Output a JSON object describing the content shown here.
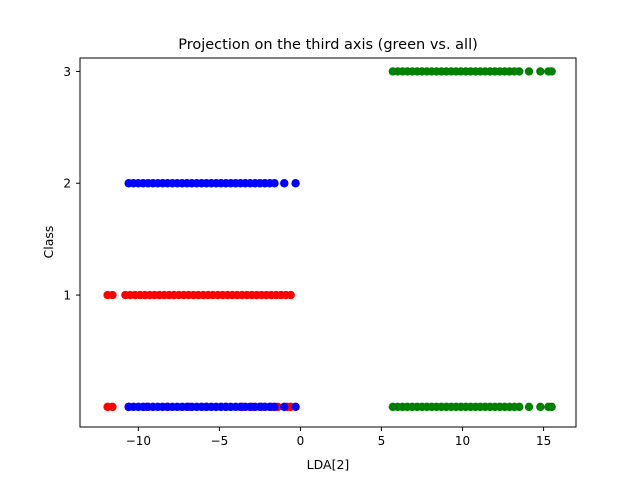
{
  "chart_data": {
    "type": "scatter",
    "title": "Projection on the third axis (green vs. all)",
    "xlabel": "LDA[2]",
    "ylabel": "Class",
    "xlim": [
      -13.6,
      17.0
    ],
    "ylim": [
      -0.18,
      3.12
    ],
    "xticks": [
      -10,
      -5,
      0,
      5,
      10,
      15
    ],
    "xtick_labels": [
      "−10",
      "−5",
      "0",
      "5",
      "10",
      "15"
    ],
    "yticks": [
      1,
      2,
      3
    ],
    "ytick_labels": [
      "1",
      "2",
      "3"
    ],
    "grid": false,
    "legend": "none",
    "series": [
      {
        "color": "#ff0000",
        "points": [
          [
            -11.9,
            1
          ],
          [
            -11.6,
            1
          ],
          [
            -10.8,
            1
          ],
          [
            -10.5,
            1
          ],
          [
            -10.2,
            1
          ],
          [
            -9.9,
            1
          ],
          [
            -9.6,
            1
          ],
          [
            -9.3,
            1
          ],
          [
            -9.0,
            1
          ],
          [
            -8.7,
            1
          ],
          [
            -8.4,
            1
          ],
          [
            -8.1,
            1
          ],
          [
            -7.8,
            1
          ],
          [
            -7.5,
            1
          ],
          [
            -7.2,
            1
          ],
          [
            -6.9,
            1
          ],
          [
            -6.6,
            1
          ],
          [
            -6.3,
            1
          ],
          [
            -6.0,
            1
          ],
          [
            -5.7,
            1
          ],
          [
            -5.4,
            1
          ],
          [
            -5.1,
            1
          ],
          [
            -4.8,
            1
          ],
          [
            -4.5,
            1
          ],
          [
            -4.2,
            1
          ],
          [
            -3.9,
            1
          ],
          [
            -3.6,
            1
          ],
          [
            -3.3,
            1
          ],
          [
            -3.0,
            1
          ],
          [
            -2.7,
            1
          ],
          [
            -2.4,
            1
          ],
          [
            -2.1,
            1
          ],
          [
            -1.8,
            1
          ],
          [
            -1.5,
            1
          ],
          [
            -1.2,
            1
          ],
          [
            -0.9,
            1
          ],
          [
            -0.6,
            1
          ],
          [
            -11.9,
            0
          ],
          [
            -11.6,
            0
          ],
          [
            -10.6,
            0
          ],
          [
            -9.5,
            0
          ],
          [
            -8.2,
            0
          ],
          [
            -6.9,
            0
          ],
          [
            -5.8,
            0
          ],
          [
            -4.6,
            0
          ],
          [
            -3.6,
            0
          ],
          [
            -3.0,
            0
          ],
          [
            -2.4,
            0
          ],
          [
            -1.8,
            0
          ],
          [
            -1.4,
            0
          ],
          [
            -0.8,
            0
          ],
          [
            -0.6,
            0
          ]
        ]
      },
      {
        "color": "#0000ff",
        "points": [
          [
            -10.6,
            2
          ],
          [
            -10.3,
            2
          ],
          [
            -10.0,
            2
          ],
          [
            -9.7,
            2
          ],
          [
            -9.4,
            2
          ],
          [
            -9.1,
            2
          ],
          [
            -8.8,
            2
          ],
          [
            -8.5,
            2
          ],
          [
            -8.2,
            2
          ],
          [
            -7.9,
            2
          ],
          [
            -7.6,
            2
          ],
          [
            -7.3,
            2
          ],
          [
            -7.0,
            2
          ],
          [
            -6.7,
            2
          ],
          [
            -6.4,
            2
          ],
          [
            -6.1,
            2
          ],
          [
            -5.8,
            2
          ],
          [
            -5.5,
            2
          ],
          [
            -5.2,
            2
          ],
          [
            -4.9,
            2
          ],
          [
            -4.6,
            2
          ],
          [
            -4.3,
            2
          ],
          [
            -4.0,
            2
          ],
          [
            -3.7,
            2
          ],
          [
            -3.4,
            2
          ],
          [
            -3.1,
            2
          ],
          [
            -2.8,
            2
          ],
          [
            -2.5,
            2
          ],
          [
            -2.2,
            2
          ],
          [
            -1.9,
            2
          ],
          [
            -1.6,
            2
          ],
          [
            -1.0,
            2
          ],
          [
            -0.3,
            2
          ],
          [
            -10.6,
            0
          ],
          [
            -10.3,
            0
          ],
          [
            -10.0,
            0
          ],
          [
            -9.7,
            0
          ],
          [
            -9.4,
            0
          ],
          [
            -9.1,
            0
          ],
          [
            -8.8,
            0
          ],
          [
            -8.5,
            0
          ],
          [
            -8.2,
            0
          ],
          [
            -7.9,
            0
          ],
          [
            -7.6,
            0
          ],
          [
            -7.3,
            0
          ],
          [
            -7.0,
            0
          ],
          [
            -6.7,
            0
          ],
          [
            -6.4,
            0
          ],
          [
            -6.1,
            0
          ],
          [
            -5.8,
            0
          ],
          [
            -5.5,
            0
          ],
          [
            -5.2,
            0
          ],
          [
            -4.9,
            0
          ],
          [
            -4.6,
            0
          ],
          [
            -4.3,
            0
          ],
          [
            -4.0,
            0
          ],
          [
            -3.7,
            0
          ],
          [
            -3.4,
            0
          ],
          [
            -3.1,
            0
          ],
          [
            -2.8,
            0
          ],
          [
            -2.5,
            0
          ],
          [
            -2.2,
            0
          ],
          [
            -1.9,
            0
          ],
          [
            -1.6,
            0
          ],
          [
            -1.0,
            0
          ],
          [
            -0.3,
            0
          ]
        ]
      },
      {
        "color": "#008000",
        "points": [
          [
            5.7,
            3
          ],
          [
            6.0,
            3
          ],
          [
            6.3,
            3
          ],
          [
            6.6,
            3
          ],
          [
            6.9,
            3
          ],
          [
            7.2,
            3
          ],
          [
            7.5,
            3
          ],
          [
            7.8,
            3
          ],
          [
            8.1,
            3
          ],
          [
            8.4,
            3
          ],
          [
            8.7,
            3
          ],
          [
            9.0,
            3
          ],
          [
            9.3,
            3
          ],
          [
            9.6,
            3
          ],
          [
            9.9,
            3
          ],
          [
            10.2,
            3
          ],
          [
            10.5,
            3
          ],
          [
            10.8,
            3
          ],
          [
            11.1,
            3
          ],
          [
            11.4,
            3
          ],
          [
            11.7,
            3
          ],
          [
            12.0,
            3
          ],
          [
            12.3,
            3
          ],
          [
            12.6,
            3
          ],
          [
            12.9,
            3
          ],
          [
            13.2,
            3
          ],
          [
            13.5,
            3
          ],
          [
            14.1,
            3
          ],
          [
            14.8,
            3
          ],
          [
            15.3,
            3
          ],
          [
            15.5,
            3
          ],
          [
            5.7,
            0
          ],
          [
            6.0,
            0
          ],
          [
            6.3,
            0
          ],
          [
            6.6,
            0
          ],
          [
            6.9,
            0
          ],
          [
            7.2,
            0
          ],
          [
            7.5,
            0
          ],
          [
            7.8,
            0
          ],
          [
            8.1,
            0
          ],
          [
            8.4,
            0
          ],
          [
            8.7,
            0
          ],
          [
            9.0,
            0
          ],
          [
            9.3,
            0
          ],
          [
            9.6,
            0
          ],
          [
            9.9,
            0
          ],
          [
            10.2,
            0
          ],
          [
            10.5,
            0
          ],
          [
            10.8,
            0
          ],
          [
            11.1,
            0
          ],
          [
            11.4,
            0
          ],
          [
            11.7,
            0
          ],
          [
            12.0,
            0
          ],
          [
            12.3,
            0
          ],
          [
            12.6,
            0
          ],
          [
            12.9,
            0
          ],
          [
            13.2,
            0
          ],
          [
            13.5,
            0
          ],
          [
            14.1,
            0
          ],
          [
            14.8,
            0
          ],
          [
            15.3,
            0
          ],
          [
            15.5,
            0
          ]
        ]
      }
    ]
  }
}
